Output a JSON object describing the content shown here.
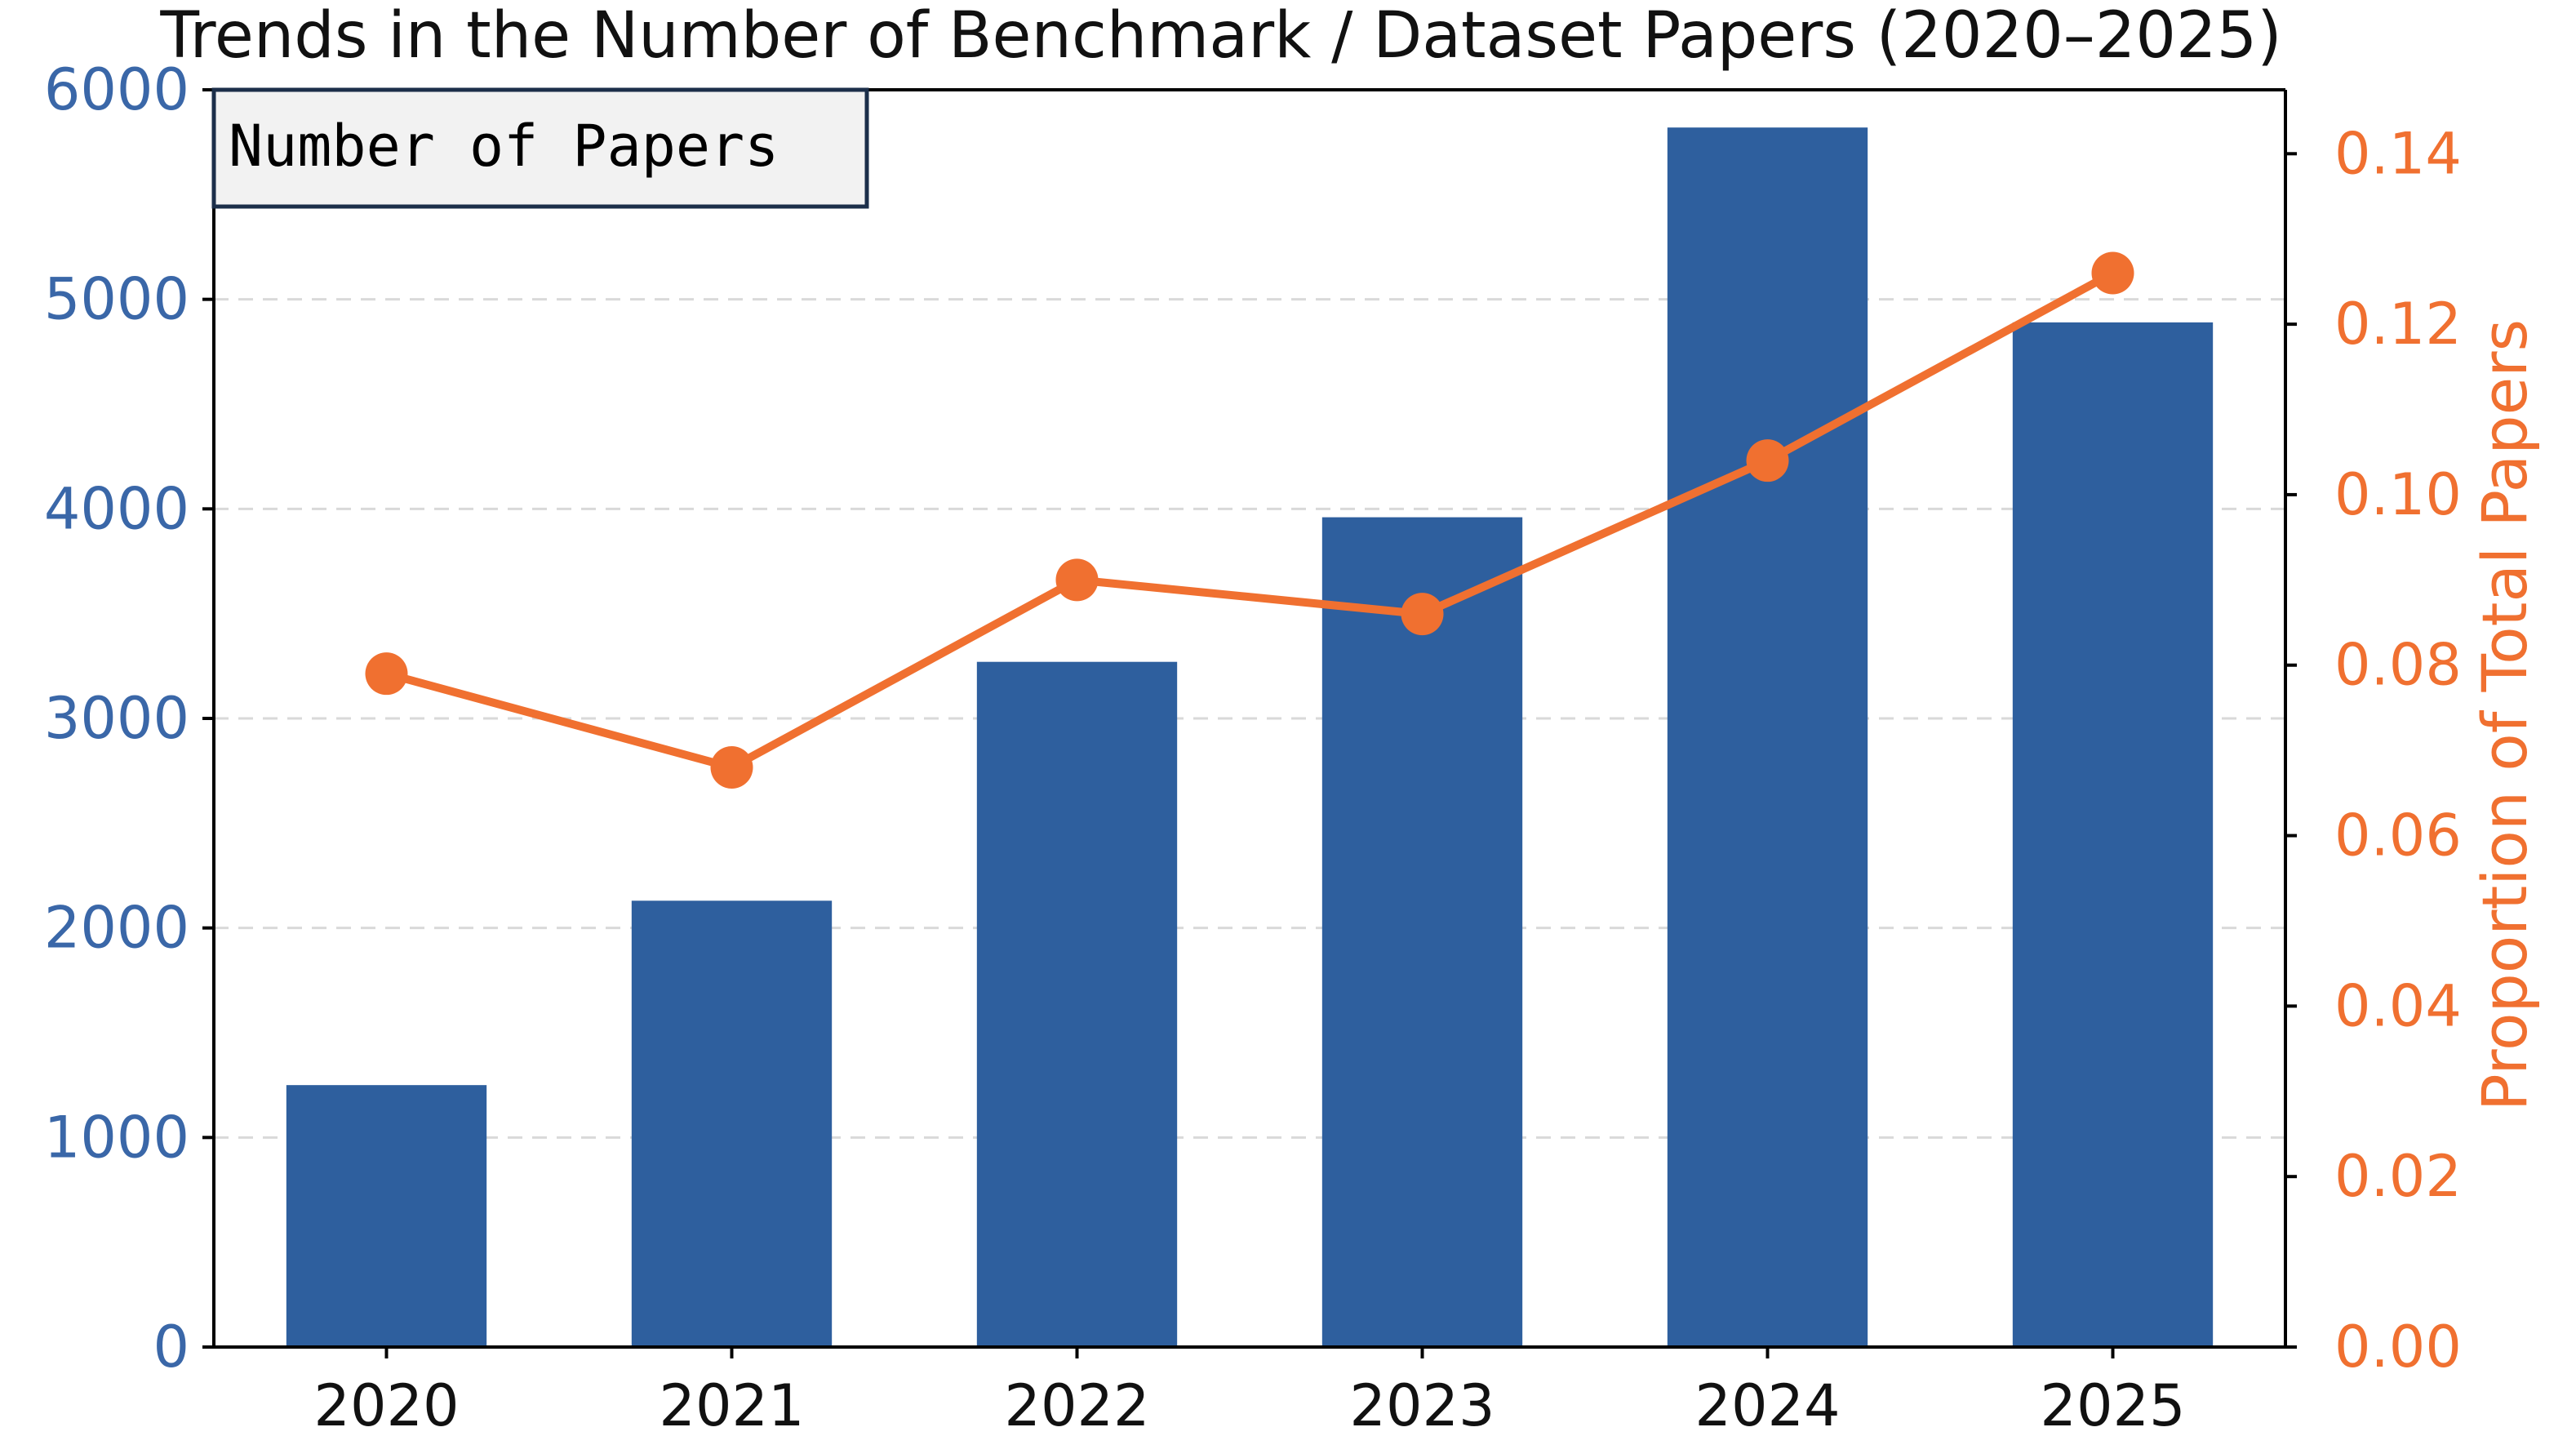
{
  "chart_data": {
    "type": "bar",
    "title": "Trends in the Number of Benchmark / Dataset Papers (2020–2025)",
    "categories": [
      "2020",
      "2021",
      "2022",
      "2023",
      "2024",
      "2025"
    ],
    "legend_label": "Number of Papers",
    "legend_placement": "top-left",
    "grid": "dashed horizontal",
    "colors": {
      "bars": "#2e5f9e",
      "line": "#f07030",
      "left_axis_text": "#3a67a8",
      "right_axis_text": "#f07030"
    },
    "series": [
      {
        "name": "Number of Papers",
        "axis": "left",
        "type": "bar",
        "values": [
          1250,
          2130,
          3270,
          3960,
          5820,
          4890
        ]
      },
      {
        "name": "Proportion of Total Papers",
        "axis": "right",
        "type": "line",
        "values": [
          0.079,
          0.068,
          0.09,
          0.086,
          0.104,
          0.126
        ]
      }
    ],
    "left_axis": {
      "label": "",
      "ylim": [
        0,
        6000
      ],
      "ticks": [
        0,
        1000,
        2000,
        3000,
        4000,
        5000,
        6000
      ],
      "tick_labels": [
        "0",
        "1000",
        "2000",
        "3000",
        "4000",
        "5000",
        "6000"
      ]
    },
    "right_axis": {
      "label": "Proportion of Total Papers",
      "ylim": [
        0,
        0.1475
      ],
      "ticks": [
        0,
        0.02,
        0.04,
        0.06,
        0.08,
        0.1,
        0.12,
        0.14
      ],
      "tick_labels": [
        "0.00",
        "0.02",
        "0.04",
        "0.06",
        "0.08",
        "0.10",
        "0.12",
        "0.14"
      ]
    }
  }
}
